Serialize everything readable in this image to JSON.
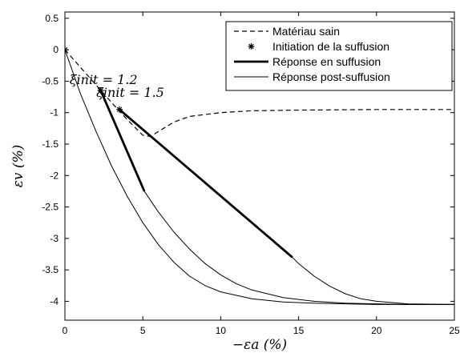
{
  "chart_data": {
    "type": "line",
    "xlabel": "−εa (%)",
    "ylabel": "εv (%)",
    "xlim": [
      0,
      25
    ],
    "ylim": [
      -4.3,
      0.6
    ],
    "xticks": [
      0,
      5,
      10,
      15,
      20,
      25
    ],
    "xtick_labels": [
      "0",
      "5",
      "10",
      "15",
      "20",
      "25"
    ],
    "yticks": [
      0.5,
      0,
      -0.5,
      -1,
      -1.5,
      -2,
      -2.5,
      -3,
      -3.5,
      -4
    ],
    "ytick_labels": [
      "0.5",
      "0",
      "-0.5",
      "-1",
      "-1.5",
      "-2",
      "-2.5",
      "-3",
      "-3.5",
      "-4"
    ],
    "grid": false,
    "legend_position": "top-right",
    "legend": [
      {
        "label": "Matériau sain",
        "style": "dashed"
      },
      {
        "label": "Initiation de la suffusion",
        "style": "marker"
      },
      {
        "label": "Réponse en suffusion",
        "style": "thick"
      },
      {
        "label": "Réponse post-suffusion",
        "style": "thin"
      }
    ],
    "annotations": [
      {
        "text": "ξinit = 1.2",
        "x": 2.3,
        "y": -0.65
      },
      {
        "text": "ξinit = 1.5",
        "x": 3.5,
        "y": -0.95
      }
    ],
    "series": [
      {
        "style": "dashed",
        "x": [
          0,
          1,
          2,
          3,
          4,
          5,
          5.5,
          6,
          7,
          8,
          10,
          12,
          15,
          20,
          25
        ],
        "y": [
          0,
          -0.28,
          -0.56,
          -0.84,
          -1.11,
          -1.36,
          -1.38,
          -1.3,
          -1.15,
          -1.06,
          -1.0,
          -0.97,
          -0.96,
          -0.95,
          -0.95
        ]
      },
      {
        "style": "marker",
        "x": [
          0,
          2.3,
          3.5
        ],
        "y": [
          0,
          -0.65,
          -0.95
        ]
      },
      {
        "style": "thick",
        "x": [
          2.3,
          5.1
        ],
        "y": [
          -0.65,
          -2.25
        ]
      },
      {
        "style": "thick",
        "x": [
          3.5,
          14.6
        ],
        "y": [
          -0.95,
          -3.3
        ]
      },
      {
        "style": "thin",
        "x": [
          0,
          1,
          2,
          3,
          4,
          5,
          6,
          7,
          8,
          9,
          10,
          12,
          14,
          16,
          18,
          20,
          22,
          25
        ],
        "y": [
          0,
          -0.7,
          -1.3,
          -1.85,
          -2.33,
          -2.75,
          -3.1,
          -3.38,
          -3.6,
          -3.75,
          -3.85,
          -3.96,
          -4.01,
          -4.03,
          -4.04,
          -4.05,
          -4.05,
          -4.05
        ]
      },
      {
        "style": "thin",
        "x": [
          5.1,
          6,
          7,
          8,
          9,
          10,
          11,
          12,
          14,
          16,
          18,
          20,
          22,
          25
        ],
        "y": [
          -2.25,
          -2.58,
          -2.9,
          -3.17,
          -3.4,
          -3.58,
          -3.72,
          -3.82,
          -3.94,
          -4.0,
          -4.03,
          -4.04,
          -4.05,
          -4.05
        ]
      },
      {
        "style": "thin",
        "x": [
          14.6,
          15,
          16,
          17,
          18,
          19,
          20,
          22,
          25
        ],
        "y": [
          -3.3,
          -3.4,
          -3.6,
          -3.76,
          -3.88,
          -3.96,
          -4.0,
          -4.04,
          -4.05
        ]
      }
    ]
  }
}
